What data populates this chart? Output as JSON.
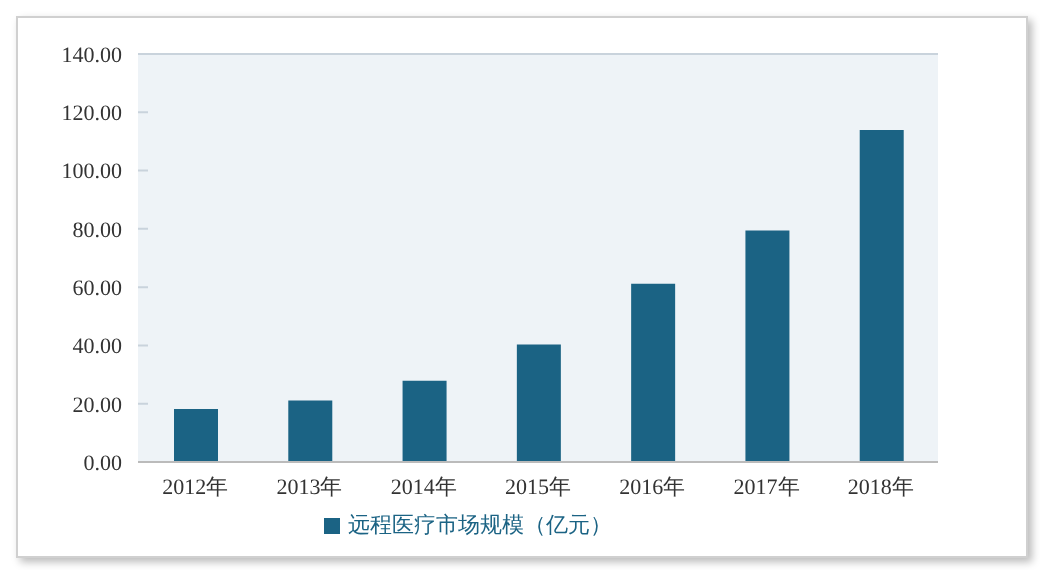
{
  "chart_data": {
    "type": "bar",
    "categories": [
      "2012年",
      "2013年",
      "2014年",
      "2015年",
      "2016年",
      "2017年",
      "2018年"
    ],
    "series": [
      {
        "name": "远程医疗市场规模（亿元）",
        "color": "#1b6384",
        "values": [
          18.2,
          21.1,
          27.9,
          40.3,
          61.2,
          79.4,
          113.9
        ]
      }
    ],
    "ylim": [
      0,
      140
    ],
    "yticks": [
      {
        "value": 0,
        "label": "0.00"
      },
      {
        "value": 20,
        "label": "20.00"
      },
      {
        "value": 40,
        "label": "40.00"
      },
      {
        "value": 60,
        "label": "60.00"
      },
      {
        "value": 80,
        "label": "80.00"
      },
      {
        "value": 100,
        "label": "100.00"
      },
      {
        "value": 120,
        "label": "120.00"
      },
      {
        "value": 140,
        "label": "140.00"
      }
    ],
    "grid": "y",
    "legend": "bottom"
  }
}
